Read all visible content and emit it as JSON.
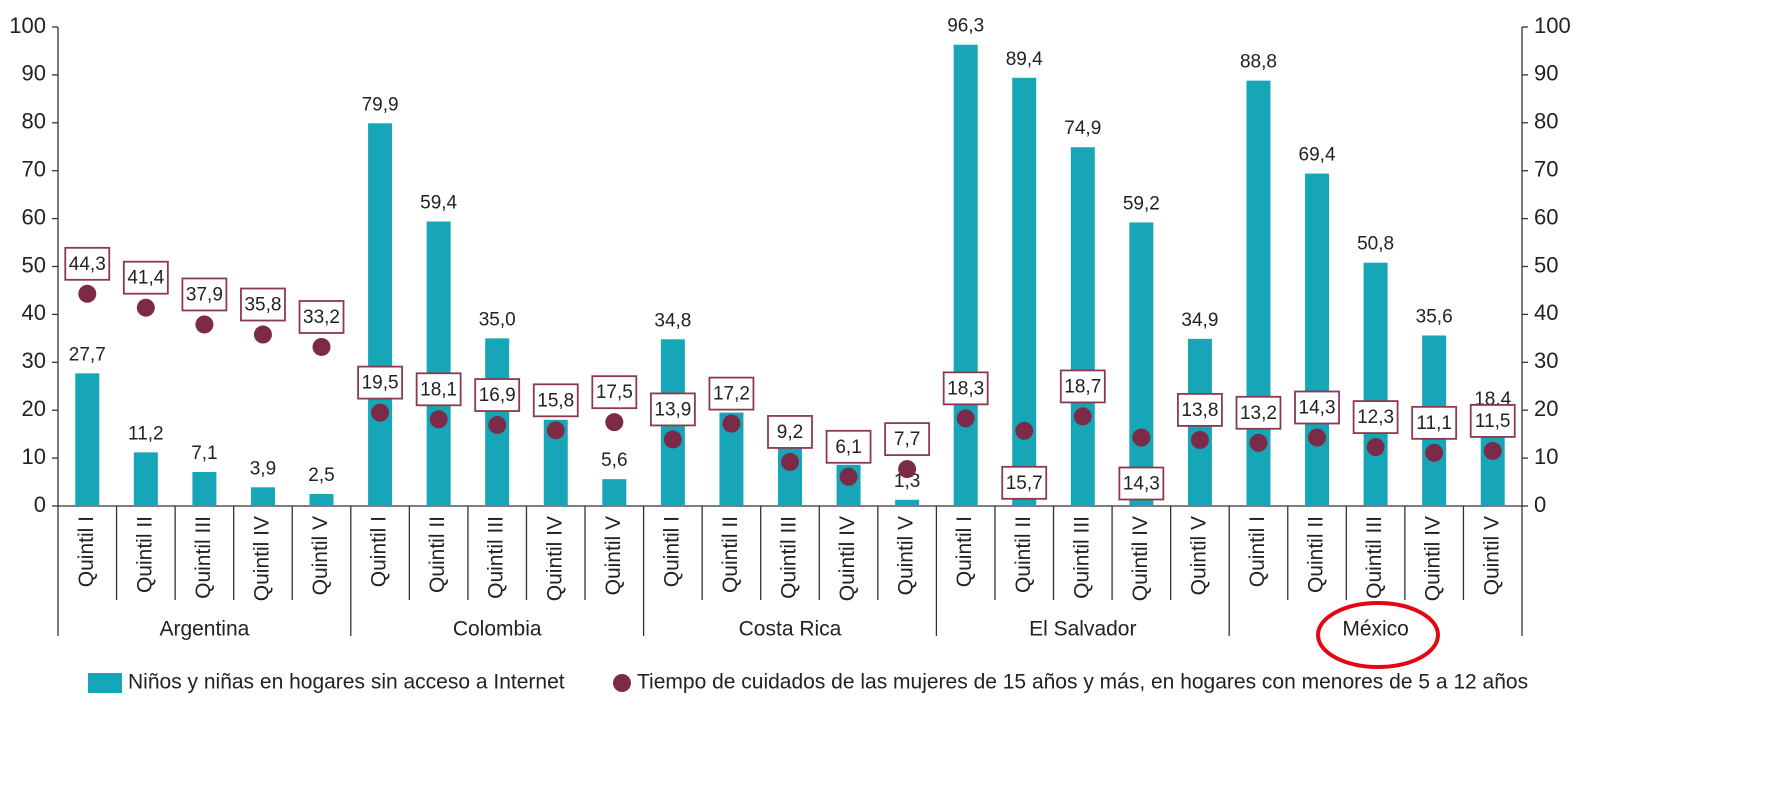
{
  "chart_data": {
    "type": "bar_dot",
    "groups": [
      {
        "name": "Argentina",
        "categories": [
          "Quintil I",
          "Quintil II",
          "Quintil III",
          "Quintil IV",
          "Quintil V"
        ]
      },
      {
        "name": "Colombia",
        "categories": [
          "Quintil I",
          "Quintil II",
          "Quintil III",
          "Quintil IV",
          "Quintil V"
        ]
      },
      {
        "name": "Costa Rica",
        "categories": [
          "Quintil I",
          "Quintil II",
          "Quintil III",
          "Quintil IV",
          "Quintil V"
        ]
      },
      {
        "name": "El Salvador",
        "categories": [
          "Quintil I",
          "Quintil II",
          "Quintil III",
          "Quintil IV",
          "Quintil V"
        ]
      },
      {
        "name": "México",
        "categories": [
          "Quintil I",
          "Quintil II",
          "Quintil III",
          "Quintil IV",
          "Quintil V"
        ]
      }
    ],
    "series": [
      {
        "name": "Niños y niñas en hogares sin acceso a Internet",
        "color": "#17a6b8",
        "mark": "bar",
        "values": [
          27.7,
          11.2,
          7.1,
          3.9,
          2.5,
          79.9,
          59.4,
          35.0,
          18,
          5.6,
          34.8,
          19.5,
          12,
          8.6,
          1.3,
          96.3,
          89.4,
          74.9,
          59.2,
          34.9,
          88.8,
          69.4,
          50.8,
          35.6,
          18.4
        ],
        "value_labels": [
          "27,7",
          "11,2",
          "7,1",
          "3,9",
          "2,5",
          "79,9",
          "59,4",
          "35,0",
          null,
          "5,6",
          "34,8",
          null,
          null,
          "8,6",
          "1,3",
          "96,3",
          "89,4",
          "74,9",
          "59,2",
          "34,9",
          "88,8",
          "69,4",
          "50,8",
          "35,6",
          "18,4"
        ]
      },
      {
        "name": "Tiempo de cuidados de las mujeres de 15 años y más, en hogares con menores de 5 a 12 años",
        "color": "#7b2b47",
        "mark": "dot",
        "axis": "y2",
        "values": [
          44.3,
          41.4,
          37.9,
          35.8,
          33.2,
          19.5,
          18.1,
          16.9,
          15.8,
          17.5,
          13.9,
          17.2,
          9.2,
          6.1,
          7.7,
          18.3,
          15.7,
          18.7,
          14.3,
          13.8,
          13.2,
          14.3,
          12.3,
          11.1,
          11.5
        ],
        "value_labels": [
          "44,3",
          "41,4",
          "37,9",
          "35,8",
          "33,2",
          "19,5",
          "18,1",
          "16,9",
          "15,8",
          "17,5",
          "13,9",
          "17,2",
          "9,2",
          "6,1",
          "7,7",
          "18,3",
          "15,7",
          "18,7",
          "14,3",
          "13,8",
          "13,2",
          "14,3",
          "12,3",
          "11,1",
          "11,5"
        ]
      }
    ],
    "ylim": [
      0,
      100
    ],
    "yticks": [
      0,
      10,
      20,
      30,
      40,
      50,
      60,
      70,
      80,
      90,
      100
    ],
    "y2lim": [
      0,
      100
    ],
    "y2ticks": [
      0,
      10,
      20,
      30,
      40,
      50,
      60,
      70,
      80,
      90,
      100
    ],
    "legend": "bottom"
  }
}
